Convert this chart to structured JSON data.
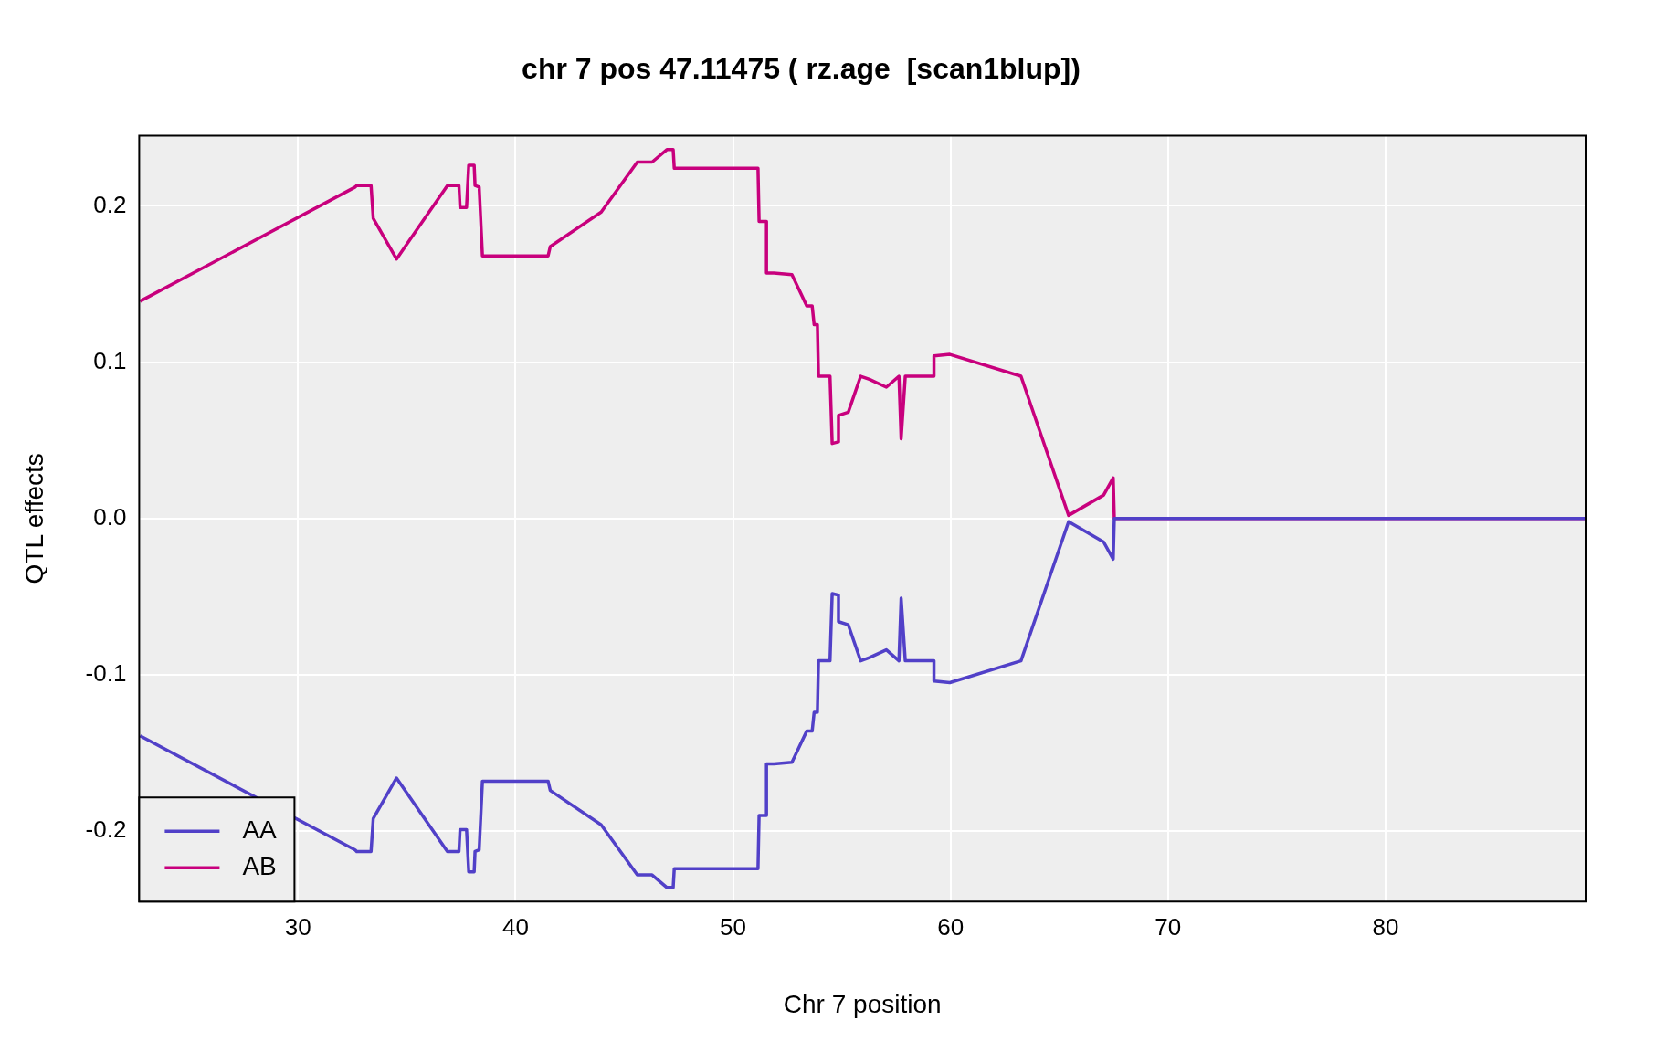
{
  "chart_data": {
    "type": "line",
    "title": "chr 7 pos 47.11475 ( rz.age  [scan1blup])",
    "xlabel": "Chr 7 position",
    "ylabel": "QTL effects",
    "x": [
      22.74,
      32.63,
      32.7,
      33.36,
      33.46,
      34.53,
      36.87,
      37.4,
      37.45,
      37.75,
      37.85,
      38.1,
      38.14,
      38.33,
      38.48,
      40.04,
      41.5,
      41.6,
      43.94,
      45.6,
      46.28,
      46.96,
      47.25,
      47.3,
      51.15,
      51.2,
      51.54,
      51.54,
      51.88,
      52.71,
      53.39,
      53.64,
      53.73,
      53.88,
      53.93,
      54.46,
      54.56,
      54.85,
      54.85,
      55.3,
      55.87,
      56.27,
      57.05,
      57.63,
      57.73,
      57.92,
      59.24,
      59.24,
      59.97,
      63.24,
      65.43,
      67.04,
      67.48,
      67.53,
      89.16
    ],
    "series": [
      {
        "name": "AA",
        "color": "#5140c8",
        "values": [
          -0.139,
          -0.212,
          -0.213,
          -0.213,
          -0.192,
          -0.166,
          -0.213,
          -0.213,
          -0.199,
          -0.199,
          -0.226,
          -0.226,
          -0.213,
          -0.212,
          -0.168,
          -0.168,
          -0.168,
          -0.174,
          -0.196,
          -0.228,
          -0.228,
          -0.236,
          -0.236,
          -0.224,
          -0.224,
          -0.19,
          -0.19,
          -0.157,
          -0.157,
          -0.156,
          -0.136,
          -0.136,
          -0.124,
          -0.124,
          -0.091,
          -0.091,
          -0.048,
          -0.049,
          -0.066,
          -0.068,
          -0.091,
          -0.089,
          -0.084,
          -0.091,
          -0.051,
          -0.091,
          -0.091,
          -0.104,
          -0.105,
          -0.091,
          -0.002,
          -0.015,
          -0.026,
          0,
          0
        ]
      },
      {
        "name": "AB",
        "color": "#c8007d",
        "values": [
          0.139,
          0.212,
          0.213,
          0.213,
          0.192,
          0.166,
          0.213,
          0.213,
          0.199,
          0.199,
          0.226,
          0.226,
          0.213,
          0.212,
          0.168,
          0.168,
          0.168,
          0.174,
          0.196,
          0.228,
          0.228,
          0.236,
          0.236,
          0.224,
          0.224,
          0.19,
          0.19,
          0.157,
          0.157,
          0.156,
          0.136,
          0.136,
          0.124,
          0.124,
          0.091,
          0.091,
          0.048,
          0.049,
          0.066,
          0.068,
          0.091,
          0.089,
          0.084,
          0.091,
          0.051,
          0.091,
          0.091,
          0.104,
          0.105,
          0.091,
          0.002,
          0.015,
          0.026,
          0,
          0
        ]
      }
    ],
    "xlim": [
      22.7,
      89.2
    ],
    "xticks": [
      30,
      40,
      50,
      60,
      70,
      80
    ],
    "ylim": [
      -0.245,
      0.245
    ],
    "yticks": [
      -0.2,
      -0.1,
      {
        "value": 0,
        "label": "0.0"
      },
      0.1,
      0.2
    ],
    "grid": true,
    "legend": "bottom left",
    "marker": "none",
    "line_style": "solid"
  }
}
